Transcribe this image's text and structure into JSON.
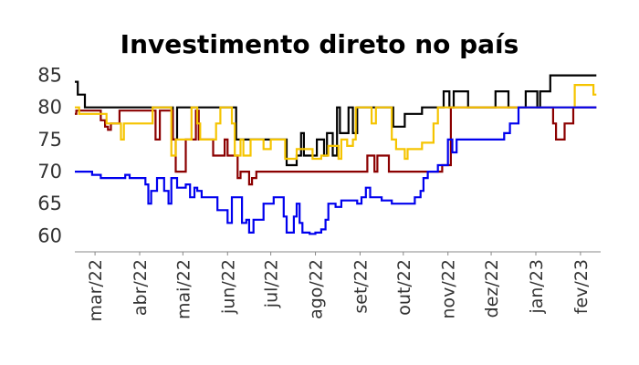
{
  "chart_data": {
    "type": "line",
    "title": "Investimento direto no país",
    "xlabel": "",
    "ylabel": "",
    "ylim": [
      57.5,
      86.5
    ],
    "xlim": [
      "2022-02-15",
      "2023-02-15"
    ],
    "yticks": [
      60,
      65,
      70,
      75,
      80,
      85
    ],
    "ytick_labels": [
      "60",
      "65",
      "70",
      "75",
      "80",
      "85"
    ],
    "xticks": [
      "2022-03-01",
      "2022-04-01",
      "2022-05-01",
      "2022-06-01",
      "2022-07-01",
      "2022-08-01",
      "2022-09-01",
      "2022-10-01",
      "2022-11-01",
      "2022-12-01",
      "2023-01-01",
      "2023-02-01"
    ],
    "xtick_labels": [
      "mar/22",
      "abr/22",
      "mai/22",
      "jun/22",
      "jul/22",
      "ago/22",
      "set/22",
      "out/22",
      "nov/22",
      "dez/22",
      "jan/23",
      "fev/23"
    ],
    "grid": false,
    "legend": "none",
    "series": [
      {
        "color": "#000000",
        "points": [
          [
            "2022-02-15",
            84
          ],
          [
            "2022-02-17",
            82
          ],
          [
            "2022-02-20",
            82
          ],
          [
            "2022-02-22",
            80
          ],
          [
            "2022-04-23",
            80
          ],
          [
            "2022-04-24",
            75
          ],
          [
            "2022-04-27",
            80
          ],
          [
            "2022-06-06",
            80
          ],
          [
            "2022-06-07",
            75
          ],
          [
            "2022-07-08",
            75
          ],
          [
            "2022-07-12",
            71
          ],
          [
            "2022-07-17",
            71
          ],
          [
            "2022-07-19",
            72.5
          ],
          [
            "2022-07-22",
            76
          ],
          [
            "2022-07-24",
            72.5
          ],
          [
            "2022-07-31",
            72.5
          ],
          [
            "2022-08-02",
            75
          ],
          [
            "2022-08-07",
            72.5
          ],
          [
            "2022-08-09",
            76
          ],
          [
            "2022-08-13",
            72.5
          ],
          [
            "2022-08-16",
            80
          ],
          [
            "2022-08-18",
            76
          ],
          [
            "2022-08-24",
            80
          ],
          [
            "2022-08-27",
            76
          ],
          [
            "2022-08-30",
            80
          ],
          [
            "2022-09-22",
            80
          ],
          [
            "2022-09-24",
            77
          ],
          [
            "2022-09-30",
            77
          ],
          [
            "2022-10-02",
            79
          ],
          [
            "2022-10-09",
            79
          ],
          [
            "2022-10-14",
            80
          ],
          [
            "2022-10-27",
            80
          ],
          [
            "2022-10-29",
            82.5
          ],
          [
            "2022-11-02",
            80
          ],
          [
            "2022-11-05",
            82.5
          ],
          [
            "2022-11-13",
            82.5
          ],
          [
            "2022-11-15",
            80
          ],
          [
            "2022-12-01",
            80
          ],
          [
            "2022-12-04",
            82.5
          ],
          [
            "2022-12-09",
            82.5
          ],
          [
            "2022-12-13",
            80
          ],
          [
            "2022-12-20",
            80
          ],
          [
            "2022-12-25",
            82.5
          ],
          [
            "2022-12-31",
            82.5
          ],
          [
            "2023-01-02",
            80
          ],
          [
            "2023-01-04",
            82.5
          ],
          [
            "2023-01-09",
            82.5
          ],
          [
            "2023-01-11",
            85
          ],
          [
            "2023-02-12",
            85
          ]
        ]
      },
      {
        "color": "#8b0000",
        "points": [
          [
            "2022-02-15",
            79
          ],
          [
            "2022-02-16",
            79.5
          ],
          [
            "2022-03-03",
            79.5
          ],
          [
            "2022-03-05",
            78
          ],
          [
            "2022-03-08",
            77
          ],
          [
            "2022-03-10",
            76.5
          ],
          [
            "2022-03-12",
            77.5
          ],
          [
            "2022-03-16",
            77.5
          ],
          [
            "2022-03-18",
            79.5
          ],
          [
            "2022-04-10",
            79.5
          ],
          [
            "2022-04-12",
            75
          ],
          [
            "2022-04-14",
            75
          ],
          [
            "2022-04-15",
            79.5
          ],
          [
            "2022-04-22",
            79.5
          ],
          [
            "2022-04-24",
            75
          ],
          [
            "2022-04-26",
            70
          ],
          [
            "2022-05-01",
            70
          ],
          [
            "2022-05-03",
            75
          ],
          [
            "2022-05-08",
            75
          ],
          [
            "2022-05-10",
            79.5
          ],
          [
            "2022-05-12",
            75
          ],
          [
            "2022-05-20",
            75
          ],
          [
            "2022-05-22",
            72.5
          ],
          [
            "2022-05-25",
            72.5
          ],
          [
            "2022-05-27",
            72.5
          ],
          [
            "2022-05-30",
            75
          ],
          [
            "2022-06-01",
            72.5
          ],
          [
            "2022-06-05",
            72.5
          ],
          [
            "2022-06-08",
            69
          ],
          [
            "2022-06-10",
            70
          ],
          [
            "2022-06-14",
            70
          ],
          [
            "2022-06-16",
            68
          ],
          [
            "2022-06-18",
            69
          ],
          [
            "2022-06-21",
            70
          ],
          [
            "2022-07-01",
            70
          ],
          [
            "2022-07-09",
            70
          ],
          [
            "2022-07-17",
            70
          ],
          [
            "2022-09-04",
            70
          ],
          [
            "2022-09-06",
            72.5
          ],
          [
            "2022-09-09",
            72.5
          ],
          [
            "2022-09-11",
            70
          ],
          [
            "2022-09-13",
            72.5
          ],
          [
            "2022-09-18",
            72.5
          ],
          [
            "2022-09-21",
            70
          ],
          [
            "2022-10-26",
            70
          ],
          [
            "2022-10-28",
            71
          ],
          [
            "2022-11-01",
            71
          ],
          [
            "2022-11-03",
            80
          ],
          [
            "2023-01-11",
            80
          ],
          [
            "2023-01-13",
            77.5
          ],
          [
            "2023-01-15",
            75
          ],
          [
            "2023-01-19",
            75
          ],
          [
            "2023-01-21",
            77.5
          ],
          [
            "2023-01-25",
            77.5
          ],
          [
            "2023-01-27",
            80
          ],
          [
            "2023-02-12",
            80
          ]
        ]
      },
      {
        "color": "#f5c400",
        "points": [
          [
            "2022-02-15",
            80
          ],
          [
            "2022-02-18",
            79
          ],
          [
            "2022-02-28",
            79
          ],
          [
            "2022-03-05",
            79
          ],
          [
            "2022-03-09",
            77.5
          ],
          [
            "2022-03-17",
            77.5
          ],
          [
            "2022-03-19",
            75
          ],
          [
            "2022-03-21",
            77.5
          ],
          [
            "2022-04-08",
            77.5
          ],
          [
            "2022-04-10",
            80
          ],
          [
            "2022-04-21",
            80
          ],
          [
            "2022-04-23",
            72.5
          ],
          [
            "2022-04-26",
            75
          ],
          [
            "2022-05-04",
            75
          ],
          [
            "2022-05-07",
            80
          ],
          [
            "2022-05-11",
            77.5
          ],
          [
            "2022-05-13",
            75
          ],
          [
            "2022-05-21",
            75
          ],
          [
            "2022-05-24",
            77.5
          ],
          [
            "2022-05-27",
            80
          ],
          [
            "2022-05-31",
            80
          ],
          [
            "2022-06-04",
            77.5
          ],
          [
            "2022-06-06",
            72.5
          ],
          [
            "2022-06-08",
            72.5
          ],
          [
            "2022-06-10",
            75
          ],
          [
            "2022-06-12",
            72.5
          ],
          [
            "2022-06-15",
            72.5
          ],
          [
            "2022-06-17",
            75
          ],
          [
            "2022-06-24",
            75
          ],
          [
            "2022-06-26",
            73.5
          ],
          [
            "2022-07-01",
            75
          ],
          [
            "2022-07-07",
            75
          ],
          [
            "2022-07-11",
            72
          ],
          [
            "2022-07-14",
            72
          ],
          [
            "2022-07-17",
            72
          ],
          [
            "2022-07-19",
            73.5
          ],
          [
            "2022-07-26",
            73.5
          ],
          [
            "2022-07-30",
            72
          ],
          [
            "2022-08-05",
            72.5
          ],
          [
            "2022-08-10",
            74
          ],
          [
            "2022-08-15",
            74
          ],
          [
            "2022-08-17",
            72
          ],
          [
            "2022-08-19",
            75
          ],
          [
            "2022-08-23",
            74
          ],
          [
            "2022-08-27",
            75
          ],
          [
            "2022-08-29",
            80
          ],
          [
            "2022-09-06",
            80
          ],
          [
            "2022-09-09",
            77.5
          ],
          [
            "2022-09-12",
            80
          ],
          [
            "2022-09-20",
            80
          ],
          [
            "2022-09-23",
            75
          ],
          [
            "2022-09-26",
            73.5
          ],
          [
            "2022-09-30",
            73.5
          ],
          [
            "2022-10-02",
            72
          ],
          [
            "2022-10-04",
            73.5
          ],
          [
            "2022-10-11",
            73.5
          ],
          [
            "2022-10-14",
            74.5
          ],
          [
            "2022-10-19",
            74.5
          ],
          [
            "2022-10-22",
            77.5
          ],
          [
            "2022-10-25",
            80
          ],
          [
            "2022-12-31",
            80
          ],
          [
            "2023-01-26",
            80
          ],
          [
            "2023-01-28",
            83.5
          ],
          [
            "2023-02-04",
            83.5
          ],
          [
            "2023-02-08",
            83.5
          ],
          [
            "2023-02-10",
            82
          ],
          [
            "2023-02-12",
            82
          ]
        ]
      },
      {
        "color": "#0000ee",
        "points": [
          [
            "2022-02-15",
            70
          ],
          [
            "2022-02-25",
            70
          ],
          [
            "2022-02-27",
            69.5
          ],
          [
            "2022-03-02",
            69.5
          ],
          [
            "2022-03-05",
            69
          ],
          [
            "2022-03-20",
            69
          ],
          [
            "2022-03-22",
            69.5
          ],
          [
            "2022-03-25",
            69
          ],
          [
            "2022-04-03",
            69
          ],
          [
            "2022-04-05",
            68
          ],
          [
            "2022-04-07",
            65
          ],
          [
            "2022-04-09",
            67
          ],
          [
            "2022-04-13",
            69
          ],
          [
            "2022-04-15",
            69
          ],
          [
            "2022-04-18",
            67
          ],
          [
            "2022-04-21",
            65
          ],
          [
            "2022-04-23",
            69
          ],
          [
            "2022-04-27",
            67.5
          ],
          [
            "2022-05-01",
            67.5
          ],
          [
            "2022-05-03",
            68
          ],
          [
            "2022-05-06",
            66
          ],
          [
            "2022-05-09",
            67.5
          ],
          [
            "2022-05-11",
            67
          ],
          [
            "2022-05-14",
            66
          ],
          [
            "2022-05-23",
            66
          ],
          [
            "2022-05-25",
            64
          ],
          [
            "2022-05-30",
            64
          ],
          [
            "2022-06-01",
            62
          ],
          [
            "2022-06-04",
            66
          ],
          [
            "2022-06-09",
            66
          ],
          [
            "2022-06-11",
            62
          ],
          [
            "2022-06-14",
            62.5
          ],
          [
            "2022-06-16",
            60.5
          ],
          [
            "2022-06-19",
            62.5
          ],
          [
            "2022-06-23",
            62.5
          ],
          [
            "2022-06-26",
            65
          ],
          [
            "2022-06-30",
            65
          ],
          [
            "2022-07-03",
            66
          ],
          [
            "2022-07-07",
            66
          ],
          [
            "2022-07-10",
            63
          ],
          [
            "2022-07-12",
            60.5
          ],
          [
            "2022-07-15",
            60.5
          ],
          [
            "2022-07-17",
            63
          ],
          [
            "2022-07-19",
            65
          ],
          [
            "2022-07-21",
            62
          ],
          [
            "2022-07-23",
            60.5
          ],
          [
            "2022-07-28",
            60.3
          ],
          [
            "2022-08-01",
            60.5
          ],
          [
            "2022-08-05",
            61
          ],
          [
            "2022-08-08",
            62.5
          ],
          [
            "2022-08-10",
            65
          ],
          [
            "2022-08-15",
            64.5
          ],
          [
            "2022-08-19",
            65.5
          ],
          [
            "2022-08-25",
            65.5
          ],
          [
            "2022-08-30",
            65
          ],
          [
            "2022-09-02",
            66
          ],
          [
            "2022-09-05",
            67.5
          ],
          [
            "2022-09-08",
            66
          ],
          [
            "2022-09-13",
            66
          ],
          [
            "2022-09-16",
            65.5
          ],
          [
            "2022-09-20",
            65.5
          ],
          [
            "2022-09-23",
            65
          ],
          [
            "2022-10-05",
            65
          ],
          [
            "2022-10-09",
            66
          ],
          [
            "2022-10-13",
            67
          ],
          [
            "2022-10-15",
            69
          ],
          [
            "2022-10-18",
            70
          ],
          [
            "2022-10-22",
            70
          ],
          [
            "2022-10-25",
            71
          ],
          [
            "2022-10-28",
            71
          ],
          [
            "2022-11-01",
            75
          ],
          [
            "2022-11-04",
            73
          ],
          [
            "2022-11-07",
            75
          ],
          [
            "2022-12-05",
            75
          ],
          [
            "2022-12-10",
            76
          ],
          [
            "2022-12-14",
            77.5
          ],
          [
            "2022-12-17",
            77.5
          ],
          [
            "2022-12-20",
            80
          ],
          [
            "2023-02-12",
            80
          ]
        ]
      }
    ]
  }
}
